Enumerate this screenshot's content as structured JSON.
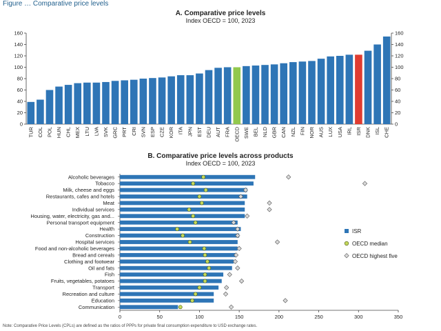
{
  "header": "Figure … Comparative price levels",
  "note": "Note: Comparative Price Levels (CPLs) are defined as the ratios of PPPs for private final consumption expenditure to USD exchange rates.",
  "chart_data": [
    {
      "type": "bar",
      "title": "A. Comparative price levels",
      "subtitle": "Index OECD = 100, 2023",
      "ylim": [
        0,
        160
      ],
      "yticks": [
        0,
        20,
        40,
        60,
        80,
        100,
        120,
        140,
        160
      ],
      "grid": false,
      "colors": {
        "default": "#2e75b6",
        "highlight_oecd": "#92c84d",
        "highlight_isr": "#e03c31"
      },
      "categories": [
        "TUR",
        "COL",
        "POL",
        "HUN",
        "CHL",
        "MEX",
        "LTU",
        "LVA",
        "SVK",
        "GRC",
        "PRT",
        "CRI",
        "SVN",
        "ESP",
        "CZE",
        "KOR",
        "ITA",
        "JPN",
        "EST",
        "DEU",
        "AUT",
        "FRA",
        "OECD",
        "SWE",
        "BEL",
        "NLD",
        "GBR",
        "CAN",
        "NZL",
        "FIN",
        "NOR",
        "AUS",
        "LUX",
        "USA",
        "IRL",
        "ISR",
        "DNK",
        "ISL",
        "CHE"
      ],
      "values": [
        39,
        43,
        60,
        66,
        69,
        72,
        73,
        73,
        74,
        76,
        77,
        78,
        80,
        81,
        82,
        84,
        86,
        86,
        89,
        95,
        99,
        100,
        100,
        102,
        103,
        104,
        105,
        107,
        109,
        110,
        111,
        115,
        119,
        120,
        122,
        122,
        129,
        140,
        154
      ]
    },
    {
      "type": "bar",
      "orientation": "horizontal",
      "title": "B. Comparative price levels across products",
      "subtitle": "Index OECD = 100, 2023",
      "xlim": [
        0,
        350
      ],
      "xticks": [
        0,
        50,
        100,
        150,
        200,
        250,
        300,
        350
      ],
      "legend_position": "right",
      "series_colors": {
        "ISR": "#2e75b6",
        "OECD median": "#c5d95b",
        "OECD highest five": "#d9d9d9"
      },
      "categories": [
        "Alcoholic beverages",
        "Tobacco",
        "Milk, cheese and eggs",
        "Restaurants, cafes and hotels",
        "Meat",
        "Individual services",
        "Housing, water, electricity, gas and...",
        "Personal transport equipment",
        "Health",
        "Construction",
        "Hospital services",
        "Food and non-alcoholic beverages",
        "Bread and cereals",
        "Clothing and footwear",
        "Oil and fats",
        "Fish",
        "Fruits, vegetables, potatoes",
        "Transport",
        "Recreation and culture",
        "Education",
        "Communication"
      ],
      "series": [
        {
          "name": "ISR",
          "marker": "bar",
          "values": [
            170,
            168,
            160,
            160,
            157,
            157,
            157,
            148,
            152,
            150,
            148,
            148,
            146,
            143,
            141,
            130,
            128,
            124,
            118,
            118,
            73
          ]
        },
        {
          "name": "OECD median",
          "marker": "circle",
          "values": [
            105,
            92,
            108,
            100,
            103,
            87,
            92,
            95,
            72,
            79,
            88,
            106,
            107,
            110,
            112,
            107,
            107,
            100,
            95,
            91,
            76
          ]
        },
        {
          "name": "OECD highest five",
          "marker": "diamond",
          "values": [
            212,
            308,
            158,
            152,
            188,
            188,
            160,
            143,
            148,
            148,
            198,
            150,
            146,
            145,
            148,
            138,
            153,
            134,
            133,
            208,
            140
          ]
        }
      ]
    }
  ]
}
